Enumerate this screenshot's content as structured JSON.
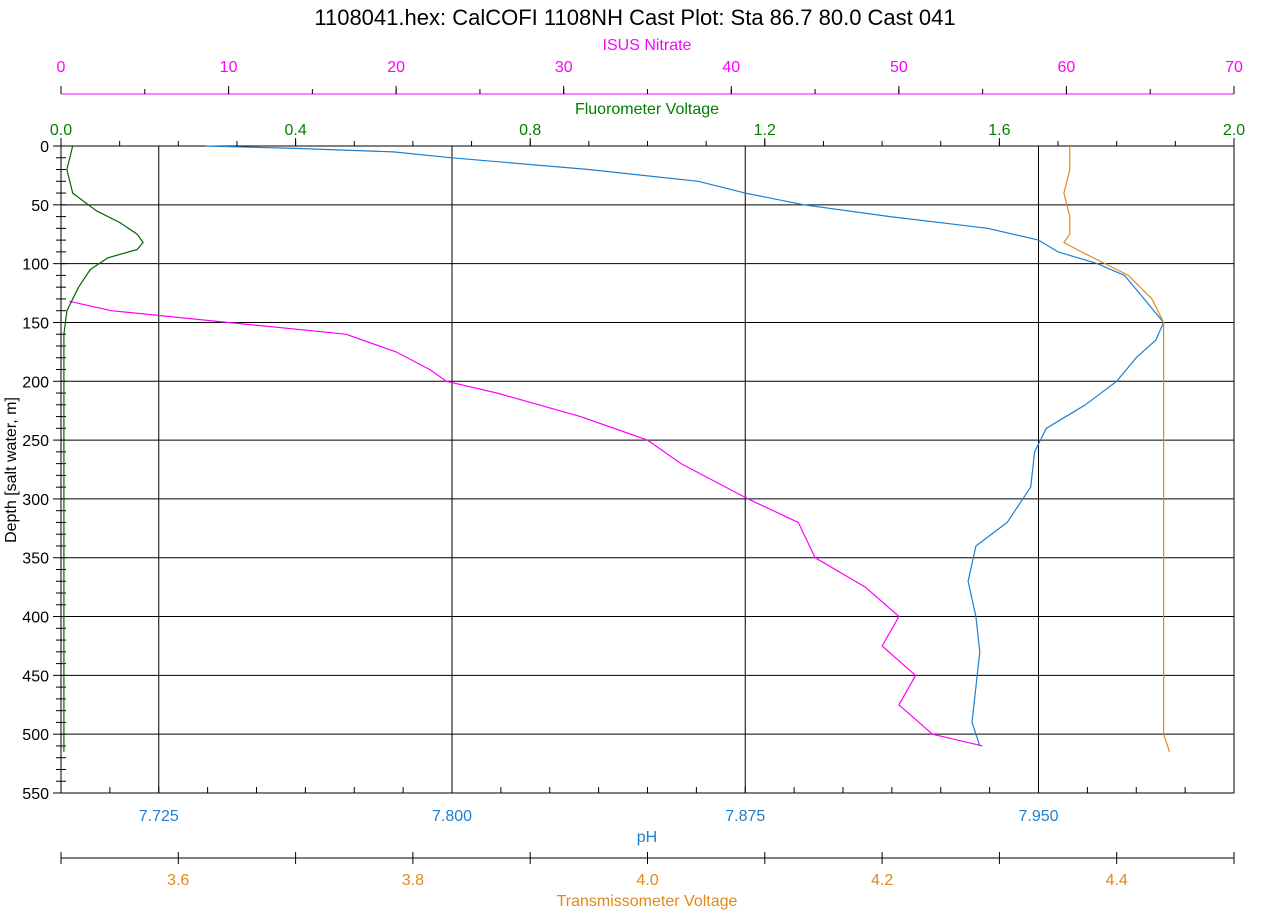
{
  "chart_data": {
    "type": "line",
    "title": "1108041.hex: CalCOFI 1108NH Cast Plot: Sta 86.7 80.0  Cast 041",
    "ylabel": "Depth [salt water, m]",
    "ylim": [
      0,
      550
    ],
    "y_ticks": [
      0,
      50,
      100,
      150,
      200,
      250,
      300,
      350,
      400,
      450,
      500,
      550
    ],
    "grid": true,
    "axes": {
      "nitrate": {
        "label": "ISUS Nitrate",
        "color": "#ff00ff",
        "range": [
          0,
          70
        ],
        "ticks": [
          "0",
          "10",
          "20",
          "30",
          "40",
          "50",
          "60",
          "70"
        ]
      },
      "fluor": {
        "label": "Fluorometer Voltage",
        "color": "#008000",
        "range": [
          0,
          2
        ],
        "ticks": [
          "0.0",
          "0.4",
          "0.8",
          "1.2",
          "1.6",
          "2.0"
        ]
      },
      "ph": {
        "label": "pH",
        "color": "#1e7fd0",
        "range": [
          7.7,
          8.0
        ],
        "ticks": [
          "7.725",
          "7.800",
          "7.875",
          "7.950"
        ]
      },
      "trans": {
        "label": "Transmissometer Voltage",
        "color": "#e0891a",
        "range": [
          3.5,
          4.5
        ],
        "ticks": [
          "3.6",
          "3.8",
          "4.0",
          "4.2",
          "4.4"
        ]
      }
    },
    "series": [
      {
        "name": "ISUS Nitrate",
        "axis": "nitrate",
        "color": "#ff00ff",
        "depth": [
          132,
          140,
          150,
          160,
          175,
          190,
          200,
          210,
          230,
          250,
          270,
          300,
          320,
          350,
          375,
          400,
          425,
          450,
          475,
          500,
          510
        ],
        "values": [
          0.5,
          3,
          10,
          17,
          20,
          22,
          23,
          26,
          31,
          35,
          37,
          41,
          44,
          45,
          48,
          50,
          49,
          51,
          50,
          52,
          55
        ]
      },
      {
        "name": "Fluorometer Voltage",
        "axis": "fluor",
        "color": "#006400",
        "depth": [
          0,
          20,
          40,
          55,
          65,
          75,
          82,
          88,
          95,
          105,
          120,
          140,
          160,
          200,
          300,
          400,
          500,
          515
        ],
        "values": [
          0.02,
          0.01,
          0.02,
          0.06,
          0.1,
          0.13,
          0.14,
          0.13,
          0.08,
          0.05,
          0.03,
          0.01,
          0.005,
          0.005,
          0.005,
          0.005,
          0.005,
          0.005
        ]
      },
      {
        "name": "pH",
        "axis": "ph",
        "color": "#1e7fd0",
        "depth": [
          0,
          2,
          5,
          10,
          20,
          30,
          40,
          50,
          60,
          70,
          80,
          90,
          100,
          110,
          130,
          150,
          165,
          180,
          200,
          220,
          240,
          260,
          290,
          320,
          340,
          370,
          400,
          430,
          460,
          490,
          510
        ],
        "values": [
          7.737,
          7.76,
          7.785,
          7.8,
          7.835,
          7.863,
          7.875,
          7.89,
          7.912,
          7.937,
          7.95,
          7.955,
          7.965,
          7.972,
          7.977,
          7.982,
          7.98,
          7.975,
          7.97,
          7.962,
          7.952,
          7.949,
          7.948,
          7.942,
          7.934,
          7.932,
          7.934,
          7.935,
          7.934,
          7.933,
          7.935
        ]
      },
      {
        "name": "Transmissometer Voltage",
        "axis": "trans",
        "color": "#e0891a",
        "depth": [
          0,
          20,
          40,
          60,
          75,
          82,
          90,
          100,
          110,
          120,
          130,
          140,
          150,
          170,
          200,
          250,
          300,
          350,
          400,
          450,
          500,
          515
        ],
        "values": [
          4.36,
          4.36,
          4.355,
          4.36,
          4.36,
          4.355,
          4.37,
          4.39,
          4.41,
          4.42,
          4.43,
          4.435,
          4.44,
          4.44,
          4.44,
          4.44,
          4.44,
          4.44,
          4.44,
          4.44,
          4.44,
          4.445
        ]
      }
    ]
  }
}
